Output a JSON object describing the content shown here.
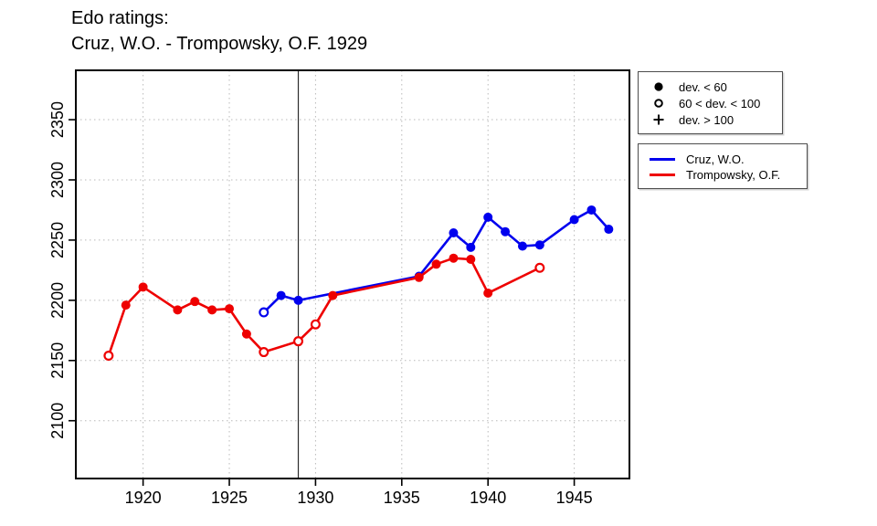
{
  "title": {
    "line1": "Edo ratings:",
    "line2": "Cruz, W.O. - Trompowsky, O.F. 1929"
  },
  "colors": {
    "cruz": "#0000ee",
    "trompowsky": "#ee0000",
    "grid": "#b9b9b9",
    "axis": "#000000"
  },
  "legends": {
    "deviation": {
      "items": [
        {
          "symbol": "filled-circle",
          "label": "dev. < 60"
        },
        {
          "symbol": "open-circle",
          "label": "60 < dev. < 100"
        },
        {
          "symbol": "plus",
          "label": "dev. > 100"
        }
      ]
    },
    "players": {
      "items": [
        {
          "name": "Cruz, W.O.",
          "color": "#0000ee"
        },
        {
          "name": "Trompowsky, O.F.",
          "color": "#ee0000"
        }
      ]
    }
  },
  "chart_data": {
    "type": "line",
    "title": "Edo ratings: Cruz, W.O. - Trompowsky, O.F. 1929",
    "xlabel": "",
    "ylabel": "",
    "xlim": [
      1916.1,
      1948.2
    ],
    "ylim": [
      2052,
      2391
    ],
    "x_ticks": [
      1920,
      1925,
      1930,
      1935,
      1940,
      1945
    ],
    "y_ticks": [
      2100,
      2150,
      2200,
      2250,
      2300,
      2350
    ],
    "grid": "dotted",
    "legend_position": "top-right-outside",
    "vline_x": 1929,
    "marker_meaning": {
      "filled": "dev. < 60",
      "open": "60 < dev. < 100",
      "plus": "dev. > 100"
    },
    "series": [
      {
        "name": "Cruz, W.O.",
        "color": "#0000ee",
        "points": [
          {
            "year": 1927,
            "rating": 2190,
            "marker": "open"
          },
          {
            "year": 1928,
            "rating": 2204,
            "marker": "filled"
          },
          {
            "year": 1929,
            "rating": 2200,
            "marker": "filled"
          },
          {
            "year": 1936,
            "rating": 2220,
            "marker": "filled"
          },
          {
            "year": 1938,
            "rating": 2256,
            "marker": "filled"
          },
          {
            "year": 1939,
            "rating": 2244,
            "marker": "filled"
          },
          {
            "year": 1940,
            "rating": 2269,
            "marker": "filled"
          },
          {
            "year": 1941,
            "rating": 2257,
            "marker": "filled"
          },
          {
            "year": 1942,
            "rating": 2245,
            "marker": "filled"
          },
          {
            "year": 1943,
            "rating": 2246,
            "marker": "filled"
          },
          {
            "year": 1945,
            "rating": 2267,
            "marker": "filled"
          },
          {
            "year": 1946,
            "rating": 2275,
            "marker": "filled"
          },
          {
            "year": 1947,
            "rating": 2259,
            "marker": "filled"
          }
        ]
      },
      {
        "name": "Trompowsky, O.F.",
        "color": "#ee0000",
        "points": [
          {
            "year": 1918,
            "rating": 2154,
            "marker": "open"
          },
          {
            "year": 1919,
            "rating": 2196,
            "marker": "filled"
          },
          {
            "year": 1920,
            "rating": 2211,
            "marker": "filled"
          },
          {
            "year": 1922,
            "rating": 2192,
            "marker": "filled"
          },
          {
            "year": 1923,
            "rating": 2199,
            "marker": "filled"
          },
          {
            "year": 1924,
            "rating": 2192,
            "marker": "filled"
          },
          {
            "year": 1925,
            "rating": 2193,
            "marker": "filled"
          },
          {
            "year": 1926,
            "rating": 2172,
            "marker": "filled"
          },
          {
            "year": 1927,
            "rating": 2157,
            "marker": "open"
          },
          {
            "year": 1929,
            "rating": 2166,
            "marker": "open"
          },
          {
            "year": 1930,
            "rating": 2180,
            "marker": "open"
          },
          {
            "year": 1931,
            "rating": 2204,
            "marker": "filled"
          },
          {
            "year": 1936,
            "rating": 2219,
            "marker": "filled"
          },
          {
            "year": 1937,
            "rating": 2230,
            "marker": "filled"
          },
          {
            "year": 1938,
            "rating": 2235,
            "marker": "filled"
          },
          {
            "year": 1939,
            "rating": 2234,
            "marker": "filled"
          },
          {
            "year": 1940,
            "rating": 2206,
            "marker": "filled"
          },
          {
            "year": 1943,
            "rating": 2227,
            "marker": "open"
          }
        ]
      }
    ]
  }
}
